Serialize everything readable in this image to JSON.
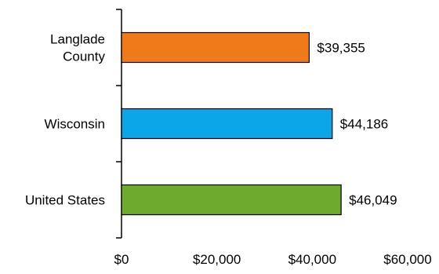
{
  "chart_data": {
    "type": "bar",
    "orientation": "horizontal",
    "title": "",
    "xlabel": "",
    "ylabel": "",
    "categories": [
      [
        "Langlade",
        "County"
      ],
      [
        "Wisconsin"
      ],
      [
        "United States"
      ]
    ],
    "values": [
      39355,
      44186,
      46049
    ],
    "value_labels": [
      "$39,355",
      "$44,186",
      "$46,049"
    ],
    "bar_colors": [
      "#F07A1A",
      "#0BA6E8",
      "#6DAA2E"
    ],
    "xlim": [
      0,
      60000
    ],
    "xticks": [
      0,
      20000,
      40000,
      60000
    ],
    "xtick_labels": [
      "$0",
      "$20,000",
      "$40,000",
      "$60,000"
    ],
    "grid": false,
    "legend": "none"
  }
}
